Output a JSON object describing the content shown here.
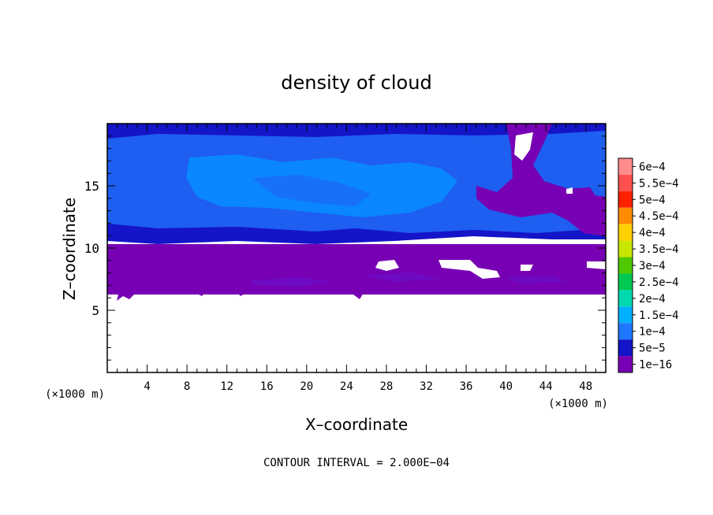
{
  "chart_data": {
    "type": "heatmap",
    "title": "density of cloud",
    "xlabel": "X–coordinate",
    "ylabel": "Z–coordinate",
    "x_unit": "(×1000 m)",
    "y_unit": "(×1000 m)",
    "xlim": [
      0,
      50
    ],
    "ylim": [
      0,
      20
    ],
    "x_ticks": [
      4,
      8,
      12,
      16,
      20,
      24,
      28,
      32,
      36,
      40,
      44,
      48
    ],
    "y_ticks": [
      5,
      10,
      15
    ],
    "footer": "CONTOUR INTERVAL = 2.000E−04",
    "colorbar": {
      "position": "right",
      "labels": [
        "6e−4",
        "5.5e−4",
        "5e−4",
        "4.5e−4",
        "4e−4",
        "3.5e−4",
        "3e−4",
        "2.5e−4",
        "2e−4",
        "1.5e−4",
        "1e−4",
        "5e−5",
        "1e−16"
      ],
      "colors": [
        "#ff8c8c",
        "#ff5050",
        "#ff2000",
        "#ff8c00",
        "#ffd000",
        "#c8e600",
        "#50c800",
        "#00c850",
        "#00d8b0",
        "#00b0ff",
        "#1e78ff",
        "#1414c8",
        "#7800b4"
      ]
    },
    "field": {
      "regions": [
        {
          "value_class": "1e-16",
          "color": "#7800b4",
          "z_range": [
            6.3,
            10.3
          ],
          "x_range": [
            0,
            50
          ]
        },
        {
          "value_class": "5e-5 to 1e-4",
          "color": "#1e60f0",
          "z_range": [
            10.3,
            19.9
          ],
          "x_range": [
            0,
            50
          ]
        },
        {
          "value_class": "1.5e-4",
          "color": "#0a88ff",
          "z_range": [
            12.5,
            17.0
          ],
          "x_range": [
            12,
            30
          ]
        },
        {
          "value_class": "1e-16",
          "color": "#7800b4",
          "z_range": [
            11.5,
            19.9
          ],
          "x_range": [
            40,
            50
          ]
        },
        {
          "value_class": "none",
          "color": "#ffffff",
          "z_range": [
            0,
            6.3
          ],
          "x_range": [
            0,
            50
          ]
        }
      ]
    }
  }
}
